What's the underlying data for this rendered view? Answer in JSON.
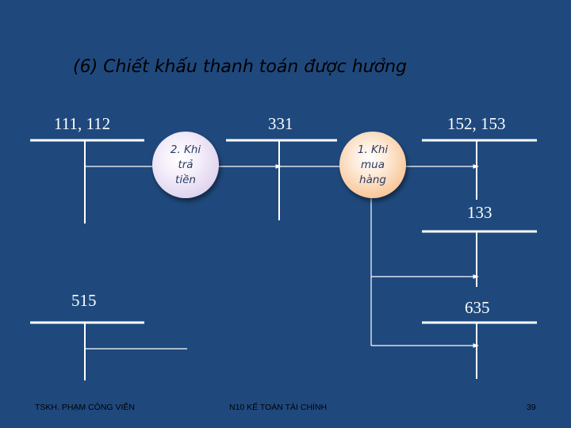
{
  "title": "(6) Chiết khấu thanh toán được hưởng",
  "accounts": {
    "a111": "111, 112",
    "a331": "331",
    "a152": "152, 153",
    "a133": "133",
    "a515": "515",
    "a635": "635"
  },
  "circles": {
    "pay": [
      "2. Khi",
      "trả",
      "tiền"
    ],
    "buy": [
      "1. Khi",
      "mua",
      "hàng"
    ]
  },
  "footer": {
    "author": "TSKH. PHẠM CÔNG VIỄN",
    "course": "N10 KẾ TOÁN TÀI CHÍNH",
    "page": "39"
  },
  "colors": {
    "background": "#1f497d",
    "line": "#ffffff",
    "circle_pay": "#d2c2e6",
    "circle_buy": "#f5b070"
  }
}
